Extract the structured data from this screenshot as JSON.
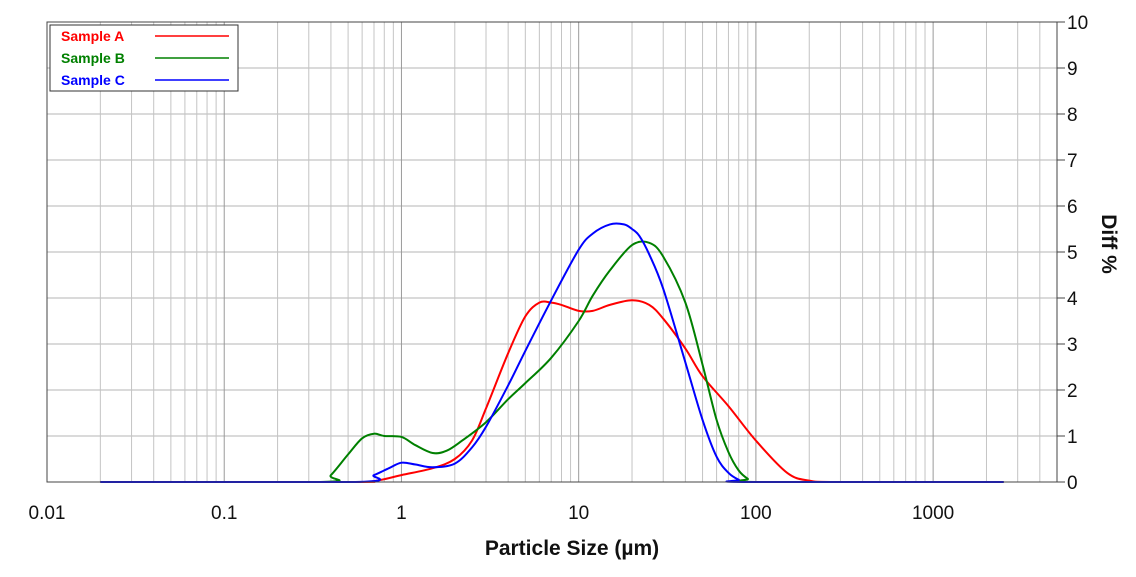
{
  "chart_data": {
    "type": "line",
    "xlabel": "Particle Size (µm)",
    "ylabel": "Diff %",
    "x_scale": "log",
    "xlim": [
      0.01,
      5000
    ],
    "ylim": [
      0,
      10
    ],
    "x_ticks": [
      0.01,
      0.1,
      1,
      10,
      100,
      1000
    ],
    "x_tick_labels": [
      "0.01",
      "0.1",
      "1",
      "10",
      "100",
      "1000"
    ],
    "y_ticks": [
      0,
      1,
      2,
      3,
      4,
      5,
      6,
      7,
      8,
      9,
      10
    ],
    "y_tick_labels": [
      "0",
      "1",
      "2",
      "3",
      "4",
      "5",
      "6",
      "7",
      "8",
      "9",
      "10"
    ],
    "grid": true,
    "legend_position": "top-left",
    "series": [
      {
        "name": "Sample A",
        "color": "#ff0000",
        "x": [
          0.02,
          0.5,
          0.7,
          1.0,
          1.5,
          2.0,
          2.5,
          3.0,
          4.0,
          5.0,
          6.0,
          7.0,
          8.0,
          10.0,
          12.0,
          15.0,
          20.0,
          25.0,
          30.0,
          40.0,
          50.0,
          70.0,
          100.0,
          150.0,
          200.0,
          300.0,
          2500.0
        ],
        "y": [
          0,
          0,
          0.02,
          0.15,
          0.3,
          0.5,
          0.9,
          1.6,
          2.8,
          3.6,
          3.9,
          3.9,
          3.85,
          3.72,
          3.72,
          3.85,
          3.95,
          3.85,
          3.55,
          2.9,
          2.3,
          1.65,
          0.9,
          0.2,
          0.03,
          0,
          0
        ]
      },
      {
        "name": "Sample B",
        "color": "#008000",
        "x": [
          0.02,
          0.35,
          0.4,
          0.5,
          0.6,
          0.7,
          0.8,
          1.0,
          1.2,
          1.5,
          1.8,
          2.2,
          3.0,
          4.0,
          5.0,
          7.0,
          10.0,
          12.0,
          15.0,
          20.0,
          25.0,
          30.0,
          40.0,
          50.0,
          60.0,
          70.0,
          80.0,
          90.0,
          100.0,
          2500.0
        ],
        "y": [
          0,
          0,
          0.15,
          0.6,
          0.95,
          1.05,
          1.0,
          0.98,
          0.8,
          0.63,
          0.68,
          0.9,
          1.3,
          1.8,
          2.15,
          2.7,
          3.5,
          4.05,
          4.6,
          5.15,
          5.2,
          4.9,
          3.9,
          2.55,
          1.35,
          0.65,
          0.25,
          0.07,
          0,
          0
        ]
      },
      {
        "name": "Sample C",
        "color": "#0000ff",
        "x": [
          0.02,
          0.55,
          0.7,
          0.85,
          1.0,
          1.2,
          1.5,
          2.0,
          2.5,
          3.0,
          4.0,
          5.0,
          7.0,
          10.0,
          12.0,
          15.0,
          18.0,
          20.0,
          22.0,
          25.0,
          30.0,
          40.0,
          50.0,
          60.0,
          70.0,
          80.0,
          90.0,
          2500.0
        ],
        "y": [
          0,
          0,
          0.15,
          0.3,
          0.42,
          0.38,
          0.32,
          0.4,
          0.75,
          1.2,
          2.1,
          2.85,
          3.95,
          5.05,
          5.4,
          5.6,
          5.6,
          5.5,
          5.35,
          4.95,
          4.2,
          2.6,
          1.35,
          0.55,
          0.2,
          0.05,
          0,
          0
        ]
      }
    ]
  }
}
